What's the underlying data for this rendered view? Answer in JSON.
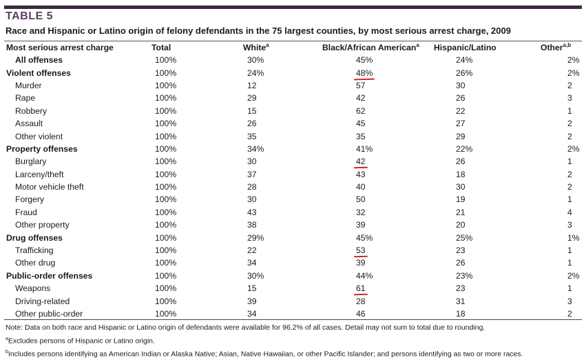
{
  "table_label": "TABLE 5",
  "caption": "Race and Hispanic or Latino origin of felony defendants in the 75 largest counties, by most serious arrest charge, 2009",
  "columns": {
    "charge": "Most serious arrest charge",
    "total": "Total",
    "white": "White",
    "white_sup": "a",
    "black": "Black/African American",
    "black_sup": "a",
    "hispanic": "Hispanic/Latino",
    "other": "Other",
    "other_sup": "a,b"
  },
  "rows": [
    {
      "label": "All offenses",
      "total": "100%",
      "white": "30%",
      "black": "45%",
      "hispanic": "24%",
      "other": "2%"
    },
    {
      "label": "Violent offenses",
      "total": "100%",
      "white": "24%",
      "black": "48%",
      "hispanic": "26%",
      "other": "2%"
    },
    {
      "label": "Murder",
      "total": "100%",
      "white": "12",
      "black": "57",
      "hispanic": "30",
      "other": "2"
    },
    {
      "label": "Rape",
      "total": "100%",
      "white": "29",
      "black": "42",
      "hispanic": "26",
      "other": "3"
    },
    {
      "label": "Robbery",
      "total": "100%",
      "white": "15",
      "black": "62",
      "hispanic": "22",
      "other": "1"
    },
    {
      "label": "Assault",
      "total": "100%",
      "white": "26",
      "black": "45",
      "hispanic": "27",
      "other": "2"
    },
    {
      "label": "Other violent",
      "total": "100%",
      "white": "35",
      "black": "35",
      "hispanic": "29",
      "other": "2"
    },
    {
      "label": "Property offenses",
      "total": "100%",
      "white": "34%",
      "black": "41%",
      "hispanic": "22%",
      "other": "2%"
    },
    {
      "label": "Burglary",
      "total": "100%",
      "white": "30",
      "black": "42",
      "hispanic": "26",
      "other": "1"
    },
    {
      "label": "Larceny/theft",
      "total": "100%",
      "white": "37",
      "black": "43",
      "hispanic": "18",
      "other": "2"
    },
    {
      "label": "Motor vehicle theft",
      "total": "100%",
      "white": "28",
      "black": "40",
      "hispanic": "30",
      "other": "2"
    },
    {
      "label": "Forgery",
      "total": "100%",
      "white": "30",
      "black": "50",
      "hispanic": "19",
      "other": "1"
    },
    {
      "label": "Fraud",
      "total": "100%",
      "white": "43",
      "black": "32",
      "hispanic": "21",
      "other": "4"
    },
    {
      "label": "Other property",
      "total": "100%",
      "white": "38",
      "black": "39",
      "hispanic": "20",
      "other": "3"
    },
    {
      "label": "Drug offenses",
      "total": "100%",
      "white": "29%",
      "black": "45%",
      "hispanic": "25%",
      "other": "1%"
    },
    {
      "label": "Trafficking",
      "total": "100%",
      "white": "22",
      "black": "53",
      "hispanic": "23",
      "other": "1"
    },
    {
      "label": "Other drug",
      "total": "100%",
      "white": "34",
      "black": "39",
      "hispanic": "26",
      "other": "1"
    },
    {
      "label": "Public-order offenses",
      "total": "100%",
      "white": "30%",
      "black": "44%",
      "hispanic": "23%",
      "other": "2%"
    },
    {
      "label": "Weapons",
      "total": "100%",
      "white": "15",
      "black": "61",
      "hispanic": "23",
      "other": "1"
    },
    {
      "label": "Driving-related",
      "total": "100%",
      "white": "39",
      "black": "28",
      "hispanic": "31",
      "other": "3"
    },
    {
      "label": "Other public-order",
      "total": "100%",
      "white": "34",
      "black": "46",
      "hispanic": "18",
      "other": "2"
    }
  ],
  "notes": {
    "note": "Note: Data on both race and Hispanic or Latino origin of defendants were available for 96.2% of all cases. Detail may not sum to total due to rounding.",
    "a_mark": "a",
    "a_text": "Excludes persons of Hispanic or Latino origin.",
    "b_mark": "b",
    "b_text": "Includes persons identifying as American Indian or Alaska Native; Asian, Native Hawaiian, or other Pacific Islander; and persons identifying as two or more races."
  },
  "annotation_color": "#d3232a"
}
